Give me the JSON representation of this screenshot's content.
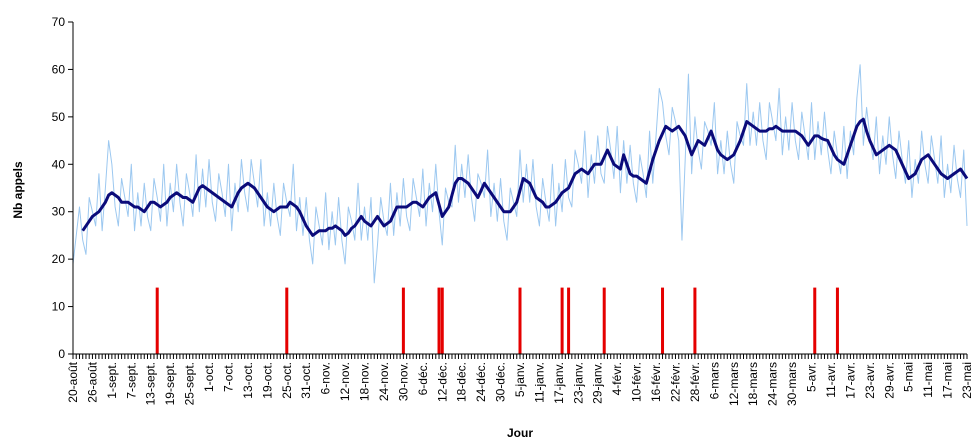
{
  "chart_data": {
    "type": "line",
    "y_label": "Nb appels",
    "x_label": "Jour",
    "ylim": [
      0,
      70
    ],
    "yticks": [
      0,
      10,
      20,
      30,
      40,
      50,
      60,
      70
    ],
    "categories": [
      "20-août",
      null,
      null,
      null,
      null,
      null,
      "26-août",
      null,
      null,
      null,
      null,
      null,
      "1-sept.",
      null,
      null,
      null,
      null,
      null,
      "7-sept.",
      null,
      null,
      null,
      null,
      null,
      "13-sept.",
      null,
      null,
      null,
      null,
      null,
      "19-sept.",
      null,
      null,
      null,
      null,
      null,
      "25-sept.",
      null,
      null,
      null,
      null,
      null,
      "1-oct.",
      null,
      null,
      null,
      null,
      null,
      "7-oct.",
      null,
      null,
      null,
      null,
      null,
      "13-oct.",
      null,
      null,
      null,
      null,
      null,
      "19-oct.",
      null,
      null,
      null,
      null,
      null,
      "25-oct.",
      null,
      null,
      null,
      null,
      null,
      "31-oct.",
      null,
      null,
      null,
      null,
      null,
      "6-nov.",
      null,
      null,
      null,
      null,
      null,
      "12-nov.",
      null,
      null,
      null,
      null,
      null,
      "18-nov.",
      null,
      null,
      null,
      null,
      null,
      "24-nov.",
      null,
      null,
      null,
      null,
      null,
      "30-nov.",
      null,
      null,
      null,
      null,
      null,
      "6-déc.",
      null,
      null,
      null,
      null,
      null,
      "12-déc.",
      null,
      null,
      null,
      null,
      null,
      "18-déc.",
      null,
      null,
      null,
      null,
      null,
      "24-déc.",
      null,
      null,
      null,
      null,
      null,
      "30-déc.",
      null,
      null,
      null,
      null,
      null,
      "5-janv.",
      null,
      null,
      null,
      null,
      null,
      "11-janv.",
      null,
      null,
      null,
      null,
      null,
      "17-janv.",
      null,
      null,
      null,
      null,
      null,
      "23-janv.",
      null,
      null,
      null,
      null,
      null,
      "29-janv.",
      null,
      null,
      null,
      null,
      null,
      "4-févr.",
      null,
      null,
      null,
      null,
      null,
      "10-févr.",
      null,
      null,
      null,
      null,
      null,
      "16-févr.",
      null,
      null,
      null,
      null,
      null,
      "22-févr.",
      null,
      null,
      null,
      null,
      null,
      "28-févr.",
      null,
      null,
      null,
      null,
      null,
      "6-mars",
      null,
      null,
      null,
      null,
      null,
      "12-mars",
      null,
      null,
      null,
      null,
      null,
      "18-mars",
      null,
      null,
      null,
      null,
      null,
      "24-mars",
      null,
      null,
      null,
      null,
      null,
      "30-mars",
      null,
      null,
      null,
      null,
      null,
      "5-avr.",
      null,
      null,
      null,
      null,
      null,
      "11-avr.",
      null,
      null,
      null,
      null,
      null,
      "17-avr.",
      null,
      null,
      null,
      null,
      null,
      "23-avr.",
      null,
      null,
      null,
      null,
      null,
      "29-avr.",
      null,
      null,
      null,
      null,
      null,
      "5-mai",
      null,
      null,
      null,
      null,
      null,
      "11-mai",
      null,
      null,
      null,
      null,
      null,
      "17-mai",
      null,
      null,
      null,
      null,
      null,
      "23-mai"
    ],
    "series": [
      {
        "type": "line",
        "color": "#9cc8f0",
        "values": [
          19,
          25,
          31,
          24,
          21,
          33,
          30,
          27,
          38,
          26,
          35,
          45,
          40,
          31,
          27,
          37,
          33,
          29,
          40,
          26,
          34,
          27,
          36,
          29,
          26,
          37,
          33,
          28,
          40,
          27,
          36,
          30,
          40,
          32,
          27,
          38,
          34,
          29,
          42,
          30,
          39,
          31,
          41,
          32,
          28,
          38,
          34,
          29,
          40,
          26,
          36,
          30,
          41,
          34,
          30,
          41,
          36,
          31,
          41,
          27,
          34,
          27,
          36,
          29,
          25,
          36,
          32,
          29,
          40,
          26,
          33,
          25,
          33,
          24,
          19,
          31,
          27,
          23,
          34,
          22,
          30,
          23,
          33,
          24,
          19,
          31,
          28,
          24,
          36,
          24,
          31,
          24,
          33,
          15,
          23,
          33,
          28,
          25,
          36,
          25,
          34,
          27,
          37,
          29,
          26,
          37,
          33,
          29,
          39,
          27,
          36,
          30,
          40,
          30,
          23,
          35,
          32,
          31,
          44,
          32,
          40,
          33,
          42,
          33,
          28,
          38,
          36,
          33,
          43,
          29,
          36,
          28,
          37,
          28,
          24,
          35,
          32,
          29,
          43,
          32,
          40,
          32,
          41,
          31,
          27,
          37,
          32,
          28,
          40,
          27,
          36,
          30,
          41,
          33,
          31,
          43,
          40,
          36,
          47,
          33,
          42,
          36,
          46,
          38,
          36,
          48,
          43,
          37,
          48,
          34,
          45,
          36,
          44,
          36,
          32,
          42,
          38,
          33,
          47,
          36,
          46,
          56,
          53,
          46,
          42,
          52,
          49,
          45,
          24,
          41,
          59,
          38,
          50,
          43,
          39,
          49,
          47,
          44,
          53,
          38,
          45,
          38,
          47,
          40,
          36,
          49,
          46,
          44,
          57,
          44,
          51,
          44,
          53,
          45,
          41,
          53,
          49,
          45,
          56,
          42,
          50,
          43,
          53,
          45,
          41,
          51,
          46,
          41,
          53,
          41,
          49,
          42,
          51,
          43,
          38,
          47,
          42,
          38,
          48,
          37,
          47,
          42,
          54,
          61,
          44,
          52,
          46,
          41,
          50,
          38,
          46,
          40,
          50,
          42,
          37,
          47,
          41,
          36,
          45,
          33,
          41,
          36,
          47,
          40,
          36,
          46,
          41,
          36,
          46,
          33,
          40,
          34,
          44,
          37,
          33,
          43,
          27
        ]
      },
      {
        "type": "line",
        "color": "#0b0b7a",
        "values": [
          null,
          null,
          null,
          26,
          27,
          28,
          29,
          29.5,
          30,
          31,
          32,
          33.5,
          34,
          33.5,
          33,
          32,
          32,
          32,
          31.5,
          31,
          31,
          30.5,
          30,
          31,
          32,
          32,
          31.5,
          31,
          31.5,
          32,
          33,
          33.5,
          34,
          33.5,
          33,
          33,
          32.5,
          32,
          33.5,
          35,
          35.5,
          35,
          34.5,
          34,
          33.5,
          33,
          32.5,
          32,
          31.5,
          31,
          32.5,
          34,
          35,
          35.5,
          36,
          35.5,
          35,
          34,
          33,
          32,
          31,
          30.5,
          30,
          30.5,
          31,
          31,
          31,
          32,
          31.5,
          31,
          30,
          28.5,
          27,
          26,
          25,
          25.5,
          26,
          26,
          26,
          26.5,
          26.5,
          27,
          26.5,
          26,
          25,
          25.5,
          26.5,
          27,
          28,
          29,
          28,
          27.5,
          27,
          28,
          29,
          28,
          27,
          27.5,
          28,
          29.5,
          31,
          31,
          31,
          31,
          31.5,
          32,
          32,
          31.5,
          31,
          32,
          33,
          33.5,
          34,
          31.5,
          29,
          30,
          31,
          33.5,
          36,
          37,
          37,
          36.5,
          36,
          35,
          34,
          33,
          34.5,
          36,
          35,
          34,
          33,
          32,
          31,
          30,
          30,
          30,
          31,
          32,
          34.5,
          37,
          36.5,
          36,
          34.5,
          33,
          32.5,
          32,
          31,
          31,
          31.5,
          32,
          33,
          34,
          34.5,
          35,
          36.5,
          38,
          38.5,
          39,
          38.5,
          38,
          39,
          40,
          40,
          40,
          41.5,
          43,
          41.5,
          40,
          39.5,
          39,
          42,
          40,
          38,
          37.5,
          37.5,
          37,
          36.5,
          36,
          38.5,
          41,
          43,
          45,
          46.5,
          48,
          47.5,
          47,
          47.5,
          48,
          47,
          46,
          44,
          42,
          43.5,
          45,
          44.5,
          44,
          45.5,
          47,
          45,
          43,
          42,
          41.5,
          41,
          41.5,
          42,
          43.5,
          45,
          47,
          49,
          48.5,
          48,
          47.5,
          47,
          47,
          47,
          47.5,
          47.5,
          48,
          47.5,
          47,
          47,
          47,
          47,
          47,
          46.5,
          46,
          45,
          44,
          45,
          46,
          46,
          45.5,
          45.2,
          45,
          43.5,
          42,
          41,
          40.5,
          40,
          42,
          44,
          46,
          48,
          49,
          49.5,
          47,
          45,
          43.5,
          42,
          42.5,
          43,
          43.5,
          44,
          43.5,
          43,
          41.5,
          40,
          38.5,
          37,
          37.5,
          38,
          39.5,
          41,
          41.5,
          42,
          41,
          40,
          39,
          38,
          37.5,
          37,
          37.5,
          38,
          38.5,
          39,
          38,
          37
        ]
      },
      {
        "type": "bar",
        "color": "#e50000",
        "values": [
          null,
          null,
          null,
          null,
          null,
          null,
          null,
          null,
          null,
          null,
          null,
          null,
          null,
          null,
          null,
          null,
          null,
          null,
          null,
          null,
          null,
          null,
          null,
          null,
          null,
          null,
          14,
          null,
          null,
          null,
          null,
          null,
          null,
          null,
          null,
          null,
          null,
          null,
          null,
          null,
          null,
          null,
          null,
          null,
          null,
          null,
          null,
          null,
          null,
          null,
          null,
          null,
          null,
          null,
          null,
          null,
          null,
          null,
          null,
          null,
          null,
          null,
          null,
          null,
          null,
          null,
          14,
          null,
          null,
          null,
          null,
          null,
          null,
          null,
          null,
          null,
          null,
          null,
          null,
          null,
          null,
          null,
          null,
          null,
          null,
          null,
          null,
          null,
          null,
          null,
          null,
          null,
          null,
          null,
          null,
          null,
          null,
          null,
          null,
          null,
          null,
          null,
          14,
          null,
          null,
          null,
          null,
          null,
          null,
          null,
          null,
          null,
          null,
          14,
          14,
          null,
          null,
          null,
          null,
          null,
          null,
          null,
          null,
          null,
          null,
          null,
          null,
          null,
          null,
          null,
          null,
          null,
          null,
          null,
          null,
          null,
          null,
          null,
          14,
          null,
          null,
          null,
          null,
          null,
          null,
          null,
          null,
          null,
          null,
          null,
          null,
          14,
          null,
          14,
          null,
          null,
          null,
          null,
          null,
          null,
          null,
          null,
          null,
          null,
          14,
          null,
          null,
          null,
          null,
          null,
          null,
          null,
          null,
          null,
          null,
          null,
          null,
          null,
          null,
          null,
          null,
          null,
          14,
          null,
          null,
          null,
          null,
          null,
          null,
          null,
          null,
          null,
          14,
          null,
          null,
          null,
          null,
          null,
          null,
          null,
          null,
          null,
          null,
          null,
          null,
          null,
          null,
          null,
          null,
          null,
          null,
          null,
          null,
          null,
          null,
          null,
          null,
          null,
          null,
          null,
          null,
          null,
          null,
          null,
          null,
          null,
          null,
          null,
          null,
          14,
          null,
          null,
          null,
          null,
          null,
          null,
          14,
          null,
          null,
          null,
          null,
          null,
          null,
          null,
          null,
          null,
          null,
          null,
          null,
          null,
          null,
          null,
          null,
          null,
          null,
          null,
          null,
          null,
          null,
          null,
          null,
          null,
          null,
          null,
          null,
          null,
          null,
          null,
          null,
          null,
          null,
          null,
          null,
          null,
          null,
          null,
          null
        ]
      }
    ]
  }
}
